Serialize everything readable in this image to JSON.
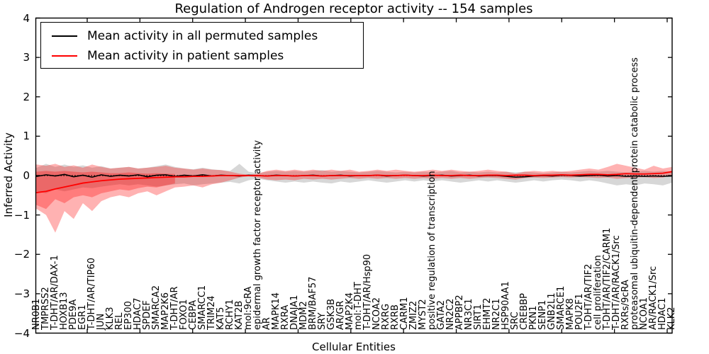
{
  "figure": {
    "title": "Regulation of Androgen receptor activity -- 154 samples",
    "xlabel": "Cellular Entities",
    "ylabel": "Inferred Activity"
  },
  "legend": {
    "position": "upper left",
    "items": [
      {
        "label": "Mean activity in all permuted samples",
        "color": "#000000"
      },
      {
        "label": "Mean activity in patient samples",
        "color": "#ff0000"
      }
    ]
  },
  "chart_data": {
    "type": "line",
    "title": "Regulation of Androgen receptor activity -- 154 samples",
    "xlabel": "Cellular Entities",
    "ylabel": "Inferred Activity",
    "ylim": [
      -4,
      4
    ],
    "yticks": [
      4,
      3,
      2,
      1,
      0,
      -1,
      -2,
      -3,
      -4
    ],
    "grid": false,
    "zero_line": true,
    "legend_position": "upper left",
    "categories": [
      "NR0B1",
      "TMPRSS2",
      "T-DHT/AR/DAX-1",
      "HOXB13",
      "PDE9A",
      "EGR1",
      "T-DHT/AR/TIP60",
      "JUN",
      "KLK3",
      "REL",
      "EP300",
      "HDAC7",
      "SPDEF",
      "SMARCA2",
      "MAP2K6",
      "T-DHT/AR",
      "FOXO1",
      "CEBPA",
      "SMARCC1",
      "TRIM24",
      "KAT5",
      "RCHY1",
      "KAT2B",
      "mol:9cRA",
      "epidermal growth factor receptor activity",
      "AR",
      "MAPK14",
      "RXRA",
      "DNAJA1",
      "MDM2",
      "BRM/BAF57",
      "SRY",
      "GSK3B",
      "AR/GR",
      "MAP2K4",
      "mol:T-DHT",
      "T-DHT/AR/Hsp90",
      "NCOA2",
      "RXRG",
      "RXRB",
      "CARM1",
      "ZMIZ2",
      "MYST2",
      "positive regulation of transcription",
      "GATA2",
      "NR2C2",
      "APPBP2",
      "NR3C1",
      "SIRT1",
      "EHMT2",
      "NR2C1",
      "HSP90AA1",
      "SRC",
      "CREBBP",
      "PKN1",
      "SENP1",
      "GNB2L1",
      "SMARCE1",
      "MAPK8",
      "POU2F1",
      "T-DHT/AR/TIF2",
      "cell proliferation",
      "T-DHT/AR/TIF2/CARM1",
      "T-DHT/AR/RACK1/Src",
      "RXRs/9cRA",
      "proteasomal ubiquitin-dependent protein catabolic process",
      "NCOA1",
      "AR/RACK1/Src",
      "HDAC1",
      "KLK2"
    ],
    "series": [
      {
        "name": "Mean activity in all permuted samples",
        "color": "#000000",
        "band_color": "rgba(110,110,110,0.28)",
        "values": [
          -0.02,
          0.02,
          -0.01,
          0.03,
          -0.03,
          0.01,
          -0.04,
          0.02,
          -0.02,
          0.01,
          -0.01,
          0.02,
          -0.03,
          0.01,
          0.02,
          -0.02,
          0.01,
          -0.01,
          0.02,
          -0.01,
          0.01,
          0.0,
          -0.01,
          0.01,
          0.0,
          -0.01,
          0.01,
          0.0,
          -0.01,
          0.0,
          0.01,
          -0.01,
          0.0,
          0.01,
          -0.01,
          0.0,
          0.0,
          0.01,
          -0.01,
          0.0,
          0.01,
          0.0,
          -0.01,
          0.0,
          0.01,
          -0.01,
          0.0,
          0.01,
          -0.01,
          0.0,
          0.0,
          -0.02,
          -0.04,
          -0.03,
          -0.01,
          0.0,
          -0.01,
          0.01,
          0.0,
          -0.01,
          0.0,
          0.01,
          -0.01,
          0.0,
          -0.02,
          -0.01,
          -0.02,
          -0.01,
          -0.02,
          -0.01
        ],
        "band_upper": [
          0.2,
          0.3,
          0.22,
          0.28,
          0.22,
          0.26,
          0.2,
          0.24,
          0.18,
          0.2,
          0.22,
          0.18,
          0.2,
          0.24,
          0.28,
          0.22,
          0.18,
          0.16,
          0.2,
          0.16,
          0.14,
          0.12,
          0.3,
          0.1,
          0.06,
          0.1,
          0.12,
          0.1,
          0.12,
          0.1,
          0.12,
          0.14,
          0.1,
          0.12,
          0.1,
          0.08,
          0.1,
          0.12,
          0.1,
          0.08,
          0.1,
          0.08,
          0.1,
          0.08,
          0.1,
          0.12,
          0.08,
          0.1,
          0.08,
          0.1,
          0.08,
          0.1,
          0.08,
          0.1,
          0.08,
          0.06,
          0.08,
          0.1,
          0.08,
          0.1,
          0.12,
          0.1,
          0.12,
          0.1,
          0.08,
          0.1,
          0.12,
          0.1,
          0.12,
          0.1
        ],
        "band_lower": [
          -0.4,
          -0.45,
          -0.35,
          -0.4,
          -0.35,
          -0.3,
          -0.32,
          -0.28,
          -0.25,
          -0.22,
          -0.25,
          -0.22,
          -0.25,
          -0.28,
          -0.25,
          -0.22,
          -0.2,
          -0.25,
          -0.22,
          -0.2,
          -0.18,
          -0.16,
          -0.2,
          -0.12,
          -0.08,
          -0.12,
          -0.15,
          -0.18,
          -0.15,
          -0.18,
          -0.15,
          -0.18,
          -0.2,
          -0.15,
          -0.18,
          -0.15,
          -0.12,
          -0.15,
          -0.18,
          -0.15,
          -0.12,
          -0.15,
          -0.12,
          -0.15,
          -0.12,
          -0.15,
          -0.18,
          -0.15,
          -0.12,
          -0.15,
          -0.12,
          -0.15,
          -0.18,
          -0.15,
          -0.12,
          -0.15,
          -0.12,
          -0.1,
          -0.12,
          -0.15,
          -0.12,
          -0.15,
          -0.2,
          -0.25,
          -0.22,
          -0.25,
          -0.2,
          -0.22,
          -0.25,
          -0.18
        ]
      },
      {
        "name": "Mean activity in patient samples",
        "color": "#ff0000",
        "band_color": "rgba(255,0,0,0.30)",
        "values": [
          -0.43,
          -0.4,
          -0.34,
          -0.29,
          -0.24,
          -0.19,
          -0.16,
          -0.13,
          -0.11,
          -0.09,
          -0.08,
          -0.07,
          -0.06,
          -0.05,
          -0.04,
          -0.03,
          -0.03,
          -0.02,
          -0.02,
          -0.01,
          0.0,
          0.0,
          0.0,
          0.0,
          0.0,
          -0.01,
          0.0,
          0.0,
          -0.01,
          0.0,
          0.0,
          -0.01,
          0.0,
          0.0,
          0.0,
          0.0,
          0.0,
          0.01,
          0.0,
          0.0,
          0.01,
          0.0,
          0.0,
          0.01,
          0.0,
          0.0,
          0.01,
          0.0,
          0.0,
          0.01,
          0.01,
          0.0,
          0.01,
          0.01,
          0.0,
          0.01,
          0.01,
          0.02,
          0.01,
          0.02,
          0.03,
          0.03,
          0.02,
          0.03,
          0.05,
          0.04,
          0.04,
          0.05,
          0.06,
          0.1
        ],
        "band_upper": [
          0.28,
          0.25,
          0.3,
          0.22,
          0.26,
          0.2,
          0.28,
          0.22,
          0.18,
          0.2,
          0.22,
          0.18,
          0.2,
          0.22,
          0.25,
          0.2,
          0.18,
          0.15,
          0.18,
          0.15,
          0.14,
          0.1,
          0.05,
          0.02,
          0.05,
          0.12,
          0.15,
          0.12,
          0.15,
          0.12,
          0.15,
          0.12,
          0.15,
          0.12,
          0.15,
          0.1,
          0.12,
          0.15,
          0.12,
          0.15,
          0.12,
          0.1,
          0.12,
          0.15,
          0.12,
          0.15,
          0.12,
          0.1,
          0.12,
          0.15,
          0.12,
          0.1,
          0.05,
          0.1,
          0.12,
          0.1,
          0.12,
          0.1,
          0.12,
          0.15,
          0.18,
          0.15,
          0.22,
          0.3,
          0.25,
          0.2,
          0.15,
          0.25,
          0.18,
          0.22
        ],
        "band_lower": [
          -0.85,
          -1.0,
          -1.45,
          -0.9,
          -1.1,
          -0.7,
          -0.9,
          -0.65,
          -0.55,
          -0.5,
          -0.55,
          -0.45,
          -0.4,
          -0.5,
          -0.4,
          -0.3,
          -0.28,
          -0.25,
          -0.3,
          -0.22,
          -0.18,
          -0.12,
          -0.05,
          -0.02,
          -0.05,
          -0.1,
          -0.12,
          -0.1,
          -0.12,
          -0.08,
          -0.1,
          -0.08,
          -0.1,
          -0.08,
          -0.06,
          -0.08,
          -0.06,
          -0.08,
          -0.06,
          -0.08,
          -0.06,
          -0.08,
          -0.06,
          -0.08,
          -0.06,
          -0.08,
          -0.06,
          -0.08,
          -0.06,
          -0.05,
          -0.06,
          -0.08,
          -0.1,
          -0.06,
          -0.05,
          -0.06,
          -0.05,
          -0.04,
          -0.05,
          -0.04,
          -0.05,
          -0.06,
          -0.05,
          -0.08,
          -0.06,
          -0.05,
          -0.04,
          -0.06,
          -0.05,
          0.02
        ],
        "band_inner_upper": [
          0.1,
          0.12,
          0.1,
          0.12,
          0.1,
          0.08,
          0.1,
          0.08,
          0.06,
          0.06,
          0.08,
          0.06,
          0.05,
          0.06,
          0.05,
          0.04
        ],
        "band_inner_lower": [
          -0.75,
          -0.85,
          -0.6,
          -0.7,
          -0.55,
          -0.5,
          -0.55,
          -0.45,
          -0.4,
          -0.35,
          -0.38,
          -0.32,
          -0.28,
          -0.3,
          -0.25,
          -0.2
        ]
      }
    ]
  }
}
